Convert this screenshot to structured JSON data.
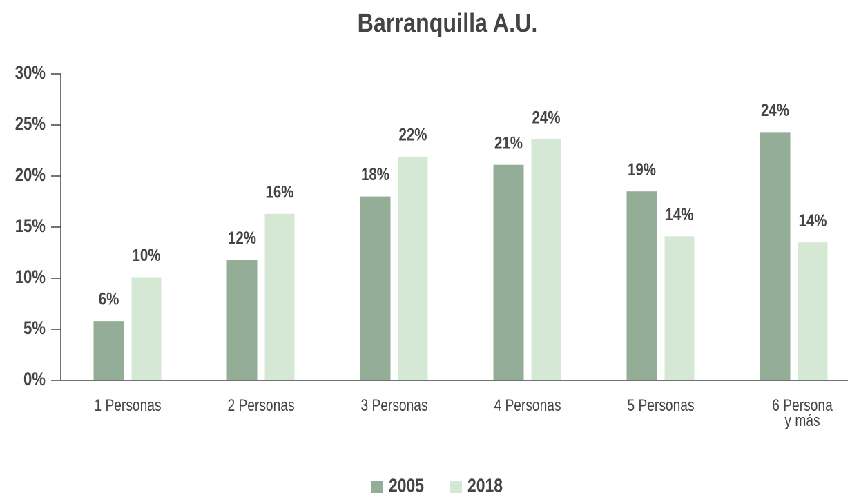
{
  "chart_data": {
    "type": "bar",
    "title": "Barranquilla A.U.",
    "categories": [
      "1 Personas",
      "2 Personas",
      "3 Personas",
      "4 Personas",
      "5 Personas",
      "6 Persona\ny más"
    ],
    "series": [
      {
        "name": "2005",
        "color": "#93ad96",
        "values": [
          5.8,
          11.8,
          18.0,
          21.1,
          18.5,
          24.3
        ],
        "value_labels": [
          "6%",
          "12%",
          "18%",
          "21%",
          "19%",
          "24%"
        ]
      },
      {
        "name": "2018",
        "color": "#d5e8d4",
        "values": [
          10.1,
          16.3,
          21.9,
          23.6,
          14.1,
          13.5
        ],
        "value_labels": [
          "10%",
          "16%",
          "22%",
          "24%",
          "14%",
          "14%"
        ]
      }
    ],
    "ylim": [
      0,
      30
    ],
    "yticks": [
      {
        "value": 0,
        "label": "0%"
      },
      {
        "value": 5,
        "label": "5%"
      },
      {
        "value": 10,
        "label": "10%"
      },
      {
        "value": 15,
        "label": "15%"
      },
      {
        "value": 20,
        "label": "20%"
      },
      {
        "value": 25,
        "label": "25%"
      },
      {
        "value": 30,
        "label": "30%"
      }
    ],
    "legend": "bottom"
  }
}
